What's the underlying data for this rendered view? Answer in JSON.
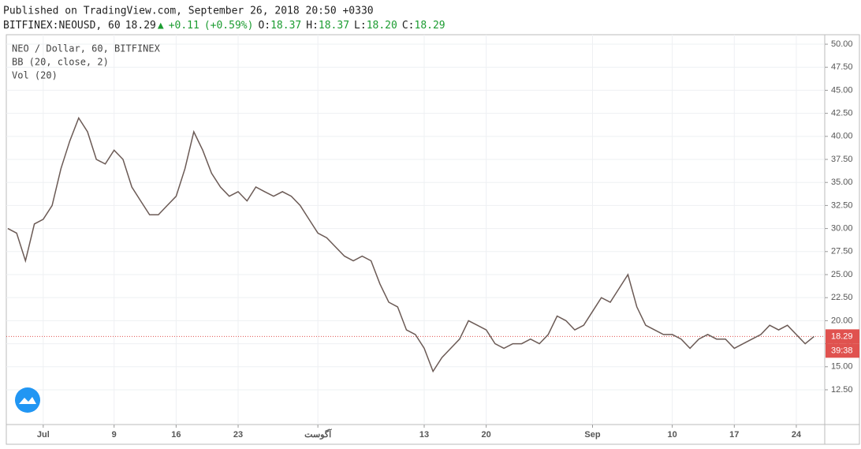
{
  "header": {
    "published": "Published on TradingView.com, September 26, 2018 20:50 +0330",
    "symbol": "BITFINEX:NEOUSD, 60",
    "last": "18.29",
    "change": "+0.11",
    "change_pct": "(+0.59%)",
    "ohlc": [
      {
        "key": "O:",
        "value": "18.37"
      },
      {
        "key": "H:",
        "value": "18.37"
      },
      {
        "key": "L:",
        "value": "18.20"
      },
      {
        "key": "C:",
        "value": "18.29"
      }
    ]
  },
  "chart_data": {
    "type": "line",
    "indicators": [
      "NEO / Dollar, 60, BITFINEX",
      "BB (20, close, 2)",
      "Vol (20)"
    ],
    "x": [
      "2018-06-27",
      "2018-06-28",
      "2018-06-29",
      "2018-06-30",
      "2018-07-01",
      "2018-07-02",
      "2018-07-03",
      "2018-07-04",
      "2018-07-05",
      "2018-07-06",
      "2018-07-07",
      "2018-07-08",
      "2018-07-09",
      "2018-07-10",
      "2018-07-11",
      "2018-07-12",
      "2018-07-13",
      "2018-07-14",
      "2018-07-15",
      "2018-07-16",
      "2018-07-17",
      "2018-07-18",
      "2018-07-19",
      "2018-07-20",
      "2018-07-21",
      "2018-07-22",
      "2018-07-23",
      "2018-07-24",
      "2018-07-25",
      "2018-07-26",
      "2018-07-27",
      "2018-07-28",
      "2018-07-29",
      "2018-07-30",
      "2018-07-31",
      "2018-08-01",
      "2018-08-02",
      "2018-08-03",
      "2018-08-04",
      "2018-08-05",
      "2018-08-06",
      "2018-08-07",
      "2018-08-08",
      "2018-08-09",
      "2018-08-10",
      "2018-08-11",
      "2018-08-12",
      "2018-08-13",
      "2018-08-14",
      "2018-08-15",
      "2018-08-16",
      "2018-08-17",
      "2018-08-18",
      "2018-08-19",
      "2018-08-20",
      "2018-08-21",
      "2018-08-22",
      "2018-08-23",
      "2018-08-24",
      "2018-08-25",
      "2018-08-26",
      "2018-08-27",
      "2018-08-28",
      "2018-08-29",
      "2018-08-30",
      "2018-08-31",
      "2018-09-01",
      "2018-09-02",
      "2018-09-03",
      "2018-09-04",
      "2018-09-05",
      "2018-09-06",
      "2018-09-07",
      "2018-09-08",
      "2018-09-09",
      "2018-09-10",
      "2018-09-11",
      "2018-09-12",
      "2018-09-13",
      "2018-09-14",
      "2018-09-15",
      "2018-09-16",
      "2018-09-17",
      "2018-09-18",
      "2018-09-19",
      "2018-09-20",
      "2018-09-21",
      "2018-09-22",
      "2018-09-23",
      "2018-09-24",
      "2018-09-25",
      "2018-09-26"
    ],
    "series": [
      {
        "name": "NEO / Dollar, 60, BITFINEX",
        "color": "#6b5a55",
        "values": [
          30.0,
          29.5,
          26.5,
          30.5,
          31.0,
          32.5,
          36.5,
          39.5,
          42.0,
          40.5,
          37.5,
          37.0,
          38.5,
          37.5,
          34.5,
          33.0,
          31.5,
          31.5,
          32.5,
          33.5,
          36.5,
          40.5,
          38.5,
          36.0,
          34.5,
          33.5,
          34.0,
          33.0,
          34.5,
          34.0,
          33.5,
          34.0,
          33.5,
          32.5,
          31.0,
          29.5,
          29.0,
          28.0,
          27.0,
          26.5,
          27.0,
          26.5,
          24.0,
          22.0,
          21.5,
          19.0,
          18.5,
          17.0,
          14.5,
          16.0,
          17.0,
          18.0,
          20.0,
          19.5,
          19.0,
          17.5,
          17.0,
          17.5,
          17.5,
          18.0,
          17.5,
          18.5,
          20.5,
          20.0,
          19.0,
          19.5,
          21.0,
          22.5,
          22.0,
          23.5,
          25.0,
          21.5,
          19.5,
          19.0,
          18.5,
          18.5,
          18.0,
          17.0,
          18.0,
          18.5,
          18.0,
          18.0,
          17.0,
          17.5,
          18.0,
          18.5,
          19.5,
          19.0,
          19.5,
          18.5,
          17.5,
          18.29
        ]
      }
    ],
    "price_line": 18.29,
    "price_line_color": "#e0524f",
    "countdown": "39:38",
    "xlim": [
      "2018-06-26T20:00",
      "2018-09-27T05:00"
    ],
    "xticks": [
      {
        "value": "2018-07-01",
        "label": "Jul"
      },
      {
        "value": "2018-07-09",
        "label": "9"
      },
      {
        "value": "2018-07-16",
        "label": "16"
      },
      {
        "value": "2018-07-23",
        "label": "23"
      },
      {
        "value": "2018-08-01",
        "label": "آگوست"
      },
      {
        "value": "2018-08-13",
        "label": "13"
      },
      {
        "value": "2018-08-20",
        "label": "20"
      },
      {
        "value": "2018-09-01",
        "label": "Sep"
      },
      {
        "value": "2018-09-10",
        "label": "10"
      },
      {
        "value": "2018-09-17",
        "label": "17"
      },
      {
        "value": "2018-09-24",
        "label": "24"
      }
    ],
    "ylim": [
      8.73,
      51.03
    ],
    "yticks": [
      {
        "value": 12.5,
        "label": "12.50"
      },
      {
        "value": 15,
        "label": "15.00"
      },
      {
        "value": 17.5,
        "label": "17.50"
      },
      {
        "value": 20,
        "label": "20.00"
      },
      {
        "value": 22.5,
        "label": "22.50"
      },
      {
        "value": 25,
        "label": "25.00"
      },
      {
        "value": 27.5,
        "label": "27.50"
      },
      {
        "value": 30,
        "label": "30.00"
      },
      {
        "value": 32.5,
        "label": "32.50"
      },
      {
        "value": 35,
        "label": "35.00"
      },
      {
        "value": 37.5,
        "label": "37.50"
      },
      {
        "value": 40,
        "label": "40.00"
      },
      {
        "value": 42.5,
        "label": "42.50"
      },
      {
        "value": 45,
        "label": "45.00"
      },
      {
        "value": 47.5,
        "label": "47.50"
      },
      {
        "value": 50,
        "label": "50.00"
      }
    ],
    "grid": true
  }
}
